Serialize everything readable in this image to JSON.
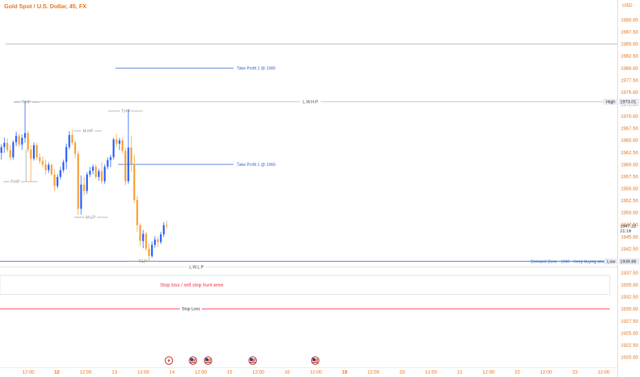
{
  "title": "Gold Spot / U.S. Dollar, 45, FX",
  "currency": "USD",
  "colors": {
    "axis_text": "#e8731b",
    "up": "#2962ff",
    "down": "#f7a23b",
    "grey_line": "#9a9a9a",
    "blue_line": "#3366cc",
    "red_line": "#f23645",
    "price_tag_bg": "#e9ecf4"
  },
  "y_axis": {
    "min": 1918.5,
    "max": 1993,
    "ticks": [
      "1990.00",
      "1987.50",
      "1985.00",
      "1982.50",
      "1980.00",
      "1977.50",
      "1975.00",
      "1972.50",
      "1970.00",
      "1967.50",
      "1965.00",
      "1962.50",
      "1960.00",
      "1957.50",
      "1955.00",
      "1952.50",
      "1950.00",
      "1947.50",
      "1945.00",
      "1942.50",
      "1940.00",
      "1937.50",
      "1935.00",
      "1932.50",
      "1930.00",
      "1927.50",
      "1925.00",
      "1922.50",
      "1920.00"
    ]
  },
  "x_axis": {
    "labels": [
      {
        "text": "12:00",
        "bold": false
      },
      {
        "text": "12",
        "bold": true
      },
      {
        "text": "12:00",
        "bold": false
      },
      {
        "text": "13",
        "bold": false
      },
      {
        "text": "12:00",
        "bold": false
      },
      {
        "text": "14",
        "bold": false
      },
      {
        "text": "12:00",
        "bold": false
      },
      {
        "text": "15",
        "bold": false
      },
      {
        "text": "12:00",
        "bold": false
      },
      {
        "text": "16",
        "bold": false
      },
      {
        "text": "12:00",
        "bold": false
      },
      {
        "text": "19",
        "bold": true
      },
      {
        "text": "12:00",
        "bold": false
      },
      {
        "text": "20",
        "bold": false
      },
      {
        "text": "12:00",
        "bold": false
      },
      {
        "text": "21",
        "bold": false
      },
      {
        "text": "12:00",
        "bold": false
      },
      {
        "text": "22",
        "bold": false
      },
      {
        "text": "12:00",
        "bold": false
      },
      {
        "text": "23",
        "bold": false
      },
      {
        "text": "12:00",
        "bold": false
      }
    ]
  },
  "price_tags": {
    "high_label": "High",
    "high_value": "1973.01",
    "current_value": "1947.22",
    "countdown": "21:16",
    "low_label": "Low",
    "low_value": "1939.88"
  },
  "annotations": {
    "take_profit_2": "Take Profit 2 @ 1980",
    "take_profit_1": "Take Profit 1 @ 1960",
    "lwhp": "L.W.H.P",
    "lwlp": "L.W.L.P",
    "demand_zone": "Demand Zone - 1940 - Keep buying above",
    "stop_hunt": "Stop loss / sell stop hunt area",
    "stop_loss": "Stop Loss",
    "thp_left": "T.HP",
    "thp_right": "T.HP",
    "mhp": "M.HP",
    "fhp": "F.HP",
    "mlp": "M.LP",
    "tlp": "T.LP"
  },
  "levels": {
    "top_line": 1985.0,
    "take_profit_2": 1980.0,
    "lwhp": 1973.01,
    "take_profit_1": 1960.0,
    "demand_zone": 1939.88,
    "lwlp": 1938.7,
    "stop_hunt_top": 1937.0,
    "stop_hunt_bottom": 1933.0,
    "stop_loss": 1930.0
  },
  "events": [
    {
      "icon": "lightning-event-icon"
    },
    {
      "icon": "us-flag-event-icon"
    },
    {
      "icon": "us-flag-event-icon"
    },
    {
      "icon": "us-flag-event-icon"
    },
    {
      "icon": "us-flag-event-icon"
    }
  ],
  "chart_data": {
    "type": "candlestick",
    "symbol": "Gold Spot / U.S. Dollar",
    "interval": "45",
    "ylim": [
      1918.5,
      1993
    ],
    "candles": [
      [
        1962.4,
        1964.2,
        1961.0,
        1963.6
      ],
      [
        1963.6,
        1965.6,
        1962.4,
        1964.5
      ],
      [
        1964.5,
        1965.4,
        1962.5,
        1963.0
      ],
      [
        1963.0,
        1964.0,
        1960.8,
        1961.5
      ],
      [
        1961.5,
        1965.0,
        1961.0,
        1964.6
      ],
      [
        1964.6,
        1966.8,
        1963.8,
        1965.9
      ],
      [
        1965.9,
        1966.5,
        1963.6,
        1964.1
      ],
      [
        1964.1,
        1966.2,
        1963.0,
        1965.5
      ],
      [
        1965.5,
        1973.2,
        1964.5,
        1966.5
      ],
      [
        1966.5,
        1967.0,
        1962.5,
        1963.1
      ],
      [
        1963.1,
        1964.0,
        1956.5,
        1961.2
      ],
      [
        1961.2,
        1964.6,
        1960.8,
        1964.0
      ],
      [
        1964.0,
        1964.4,
        1961.0,
        1961.5
      ],
      [
        1961.5,
        1962.3,
        1960.1,
        1960.7
      ],
      [
        1960.7,
        1961.7,
        1959.4,
        1960.0
      ],
      [
        1960.0,
        1960.9,
        1957.9,
        1958.8
      ],
      [
        1958.8,
        1960.4,
        1958.2,
        1959.9
      ],
      [
        1959.9,
        1960.2,
        1957.6,
        1957.9
      ],
      [
        1957.9,
        1959.0,
        1954.5,
        1955.5
      ],
      [
        1955.5,
        1957.9,
        1955.0,
        1957.4
      ],
      [
        1957.4,
        1959.5,
        1956.9,
        1958.8
      ],
      [
        1958.8,
        1961.0,
        1958.3,
        1960.5
      ],
      [
        1960.5,
        1964.3,
        1959.0,
        1963.6
      ],
      [
        1963.6,
        1966.9,
        1963.1,
        1966.1
      ],
      [
        1966.1,
        1967.2,
        1964.0,
        1964.5
      ],
      [
        1964.5,
        1965.0,
        1961.4,
        1962.2
      ],
      [
        1962.2,
        1962.7,
        1949.5,
        1950.8
      ],
      [
        1950.8,
        1957.7,
        1949.6,
        1955.8
      ],
      [
        1955.8,
        1957.4,
        1953.5,
        1954.5
      ],
      [
        1954.5,
        1958.4,
        1953.9,
        1957.9
      ],
      [
        1957.9,
        1959.5,
        1957.4,
        1958.7
      ],
      [
        1958.7,
        1960.0,
        1958.0,
        1959.5
      ],
      [
        1959.5,
        1960.0,
        1957.0,
        1957.4
      ],
      [
        1957.4,
        1959.1,
        1956.6,
        1958.6
      ],
      [
        1958.6,
        1960.5,
        1956.0,
        1956.5
      ],
      [
        1956.5,
        1960.0,
        1956.0,
        1959.5
      ],
      [
        1959.5,
        1961.5,
        1959.0,
        1960.9
      ],
      [
        1960.9,
        1962.0,
        1959.4,
        1961.5
      ],
      [
        1961.5,
        1965.5,
        1961.0,
        1965.2
      ],
      [
        1965.2,
        1966.3,
        1963.7,
        1964.3
      ],
      [
        1964.3,
        1965.5,
        1963.0,
        1965.0
      ],
      [
        1965.0,
        1965.5,
        1962.4,
        1962.8
      ],
      [
        1962.8,
        1963.5,
        1955.7,
        1956.5
      ],
      [
        1956.5,
        1971.3,
        1956.0,
        1963.5
      ],
      [
        1963.5,
        1966.0,
        1958.5,
        1960.1
      ],
      [
        1960.1,
        1962.0,
        1952.0,
        1952.6
      ],
      [
        1952.6,
        1953.5,
        1946.0,
        1947.4
      ],
      [
        1947.4,
        1947.8,
        1943.0,
        1944.1
      ],
      [
        1944.1,
        1946.4,
        1942.6,
        1945.6
      ],
      [
        1945.6,
        1946.0,
        1942.0,
        1942.5
      ],
      [
        1942.5,
        1943.6,
        1940.0,
        1941.0
      ],
      [
        1941.0,
        1944.0,
        1940.6,
        1943.3
      ],
      [
        1943.3,
        1945.1,
        1942.7,
        1944.4
      ],
      [
        1944.4,
        1945.0,
        1942.8,
        1943.9
      ],
      [
        1943.9,
        1946.0,
        1943.5,
        1945.5
      ],
      [
        1945.5,
        1948.0,
        1945.0,
        1947.4
      ],
      [
        1947.4,
        1948.3,
        1946.7,
        1947.22
      ]
    ]
  }
}
